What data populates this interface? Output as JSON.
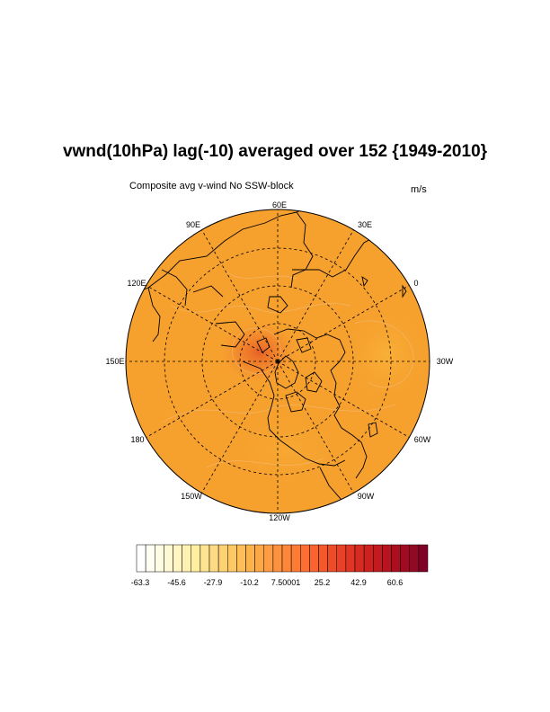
{
  "title": "vwnd(10hPa) lag(-10) averaged over 152 {1949-2010}",
  "left_string": "Composite avg v-wind No SSW-block",
  "right_string": "m/s",
  "map": {
    "projection": "polar-stereographic-north",
    "longitude_labels": [
      {
        "id": "60e",
        "text": "60E"
      },
      {
        "id": "30e",
        "text": "30E"
      },
      {
        "id": "0",
        "text": "0"
      },
      {
        "id": "30w",
        "text": "30W"
      },
      {
        "id": "60w",
        "text": "60W"
      },
      {
        "id": "90w",
        "text": "90W"
      },
      {
        "id": "120w",
        "text": "120W"
      },
      {
        "id": "150w",
        "text": "150W"
      },
      {
        "id": "180",
        "text": "180"
      },
      {
        "id": "150e",
        "text": "150E"
      },
      {
        "id": "120e",
        "text": "120E"
      },
      {
        "id": "90e",
        "text": "90E"
      }
    ],
    "fill_color": "#F6A02E",
    "max_color": "#E65A24"
  },
  "colorbar": {
    "min": -63.3,
    "max": 69.4,
    "tick_labels": [
      "-63.3",
      "-45.6",
      "-27.9",
      "-10.2",
      "7.50001",
      "25.2",
      "42.9",
      "60.6"
    ],
    "colors": [
      "#FFFFFF",
      "#FFFEF2",
      "#FFFCE4",
      "#FFF9D3",
      "#FFF5C2",
      "#FFF1B1",
      "#FFEDA0",
      "#FEE491",
      "#FEDB82",
      "#FED273",
      "#FEC965",
      "#FEBE58",
      "#FEB24C",
      "#FEA747",
      "#FD9C42",
      "#FD913D",
      "#FD8638",
      "#FD7B35",
      "#FC6F32",
      "#F9642F",
      "#F4582C",
      "#EE4C29",
      "#E84127",
      "#E03524",
      "#D72A21",
      "#CE211F",
      "#C31A1F",
      "#B8141F",
      "#AC0E20",
      "#A00B22",
      "#920924",
      "#800026"
    ]
  }
}
